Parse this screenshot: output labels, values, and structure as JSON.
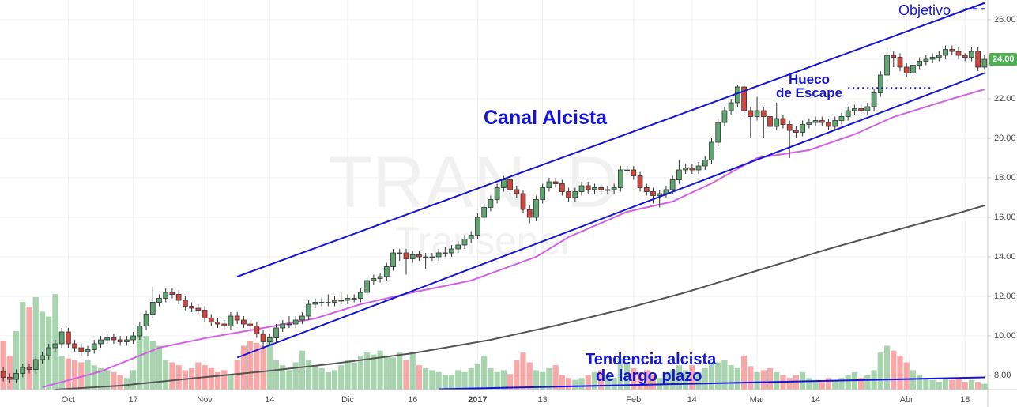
{
  "chart_data": {
    "type": "candlestick",
    "categories": [
      null,
      null,
      null,
      null,
      null,
      null,
      null,
      null,
      null,
      null,
      "Oct",
      null,
      null,
      null,
      null,
      null,
      null,
      null,
      null,
      null,
      "17",
      null,
      null,
      null,
      null,
      null,
      null,
      null,
      null,
      null,
      null,
      "Nov",
      null,
      null,
      null,
      null,
      null,
      null,
      null,
      null,
      null,
      "14",
      null,
      null,
      null,
      null,
      null,
      null,
      null,
      null,
      null,
      null,
      null,
      "Dic",
      null,
      null,
      null,
      null,
      null,
      null,
      null,
      null,
      null,
      "16",
      null,
      null,
      null,
      null,
      null,
      null,
      null,
      null,
      null,
      "2017",
      null,
      null,
      null,
      null,
      null,
      null,
      null,
      null,
      null,
      "13",
      null,
      null,
      null,
      null,
      null,
      null,
      null,
      null,
      null,
      null,
      null,
      null,
      null,
      "Feb",
      null,
      null,
      null,
      null,
      null,
      null,
      null,
      null,
      "14",
      null,
      null,
      null,
      null,
      null,
      null,
      null,
      null,
      null,
      "Mar",
      null,
      null,
      null,
      null,
      null,
      null,
      null,
      null,
      "14",
      null,
      null,
      null,
      null,
      null,
      null,
      null,
      null,
      null,
      null,
      null,
      null,
      null,
      "Abr",
      null,
      null,
      null,
      null,
      null,
      null,
      null,
      null,
      "18",
      null,
      null,
      null
    ],
    "candles": {
      "open": [
        8.2,
        7.9,
        7.8,
        8.1,
        8.4,
        8.3,
        8.8,
        9.0,
        9.4,
        9.6,
        10.2,
        9.6,
        9.4,
        9.2,
        9.3,
        9.6,
        9.8,
        9.9,
        9.8,
        9.7,
        9.8,
        10.0,
        10.5,
        11.1,
        11.7,
        11.9,
        12.2,
        12.1,
        11.8,
        11.5,
        11.4,
        11.3,
        10.9,
        10.7,
        10.6,
        10.5,
        11.0,
        10.8,
        10.6,
        10.5,
        10.1,
        9.7,
        9.9,
        10.4,
        10.6,
        10.6,
        10.8,
        11.0,
        11.6,
        11.7,
        11.7,
        11.7,
        11.8,
        11.8,
        11.9,
        11.9,
        12.2,
        12.8,
        12.9,
        13.0,
        13.5,
        14.2,
        14.2,
        13.9,
        14.1,
        14.0,
        14.0,
        14.0,
        14.2,
        14.2,
        14.4,
        14.6,
        14.9,
        15.1,
        16.0,
        16.5,
        16.9,
        17.5,
        17.9,
        17.4,
        17.2,
        16.4,
        16.0,
        16.9,
        17.5,
        17.8,
        17.7,
        17.3,
        17.0,
        17.3,
        17.6,
        17.4,
        17.5,
        17.4,
        17.4,
        17.5,
        18.4,
        18.4,
        18.1,
        17.5,
        17.3,
        17.1,
        17.2,
        17.4,
        17.9,
        18.4,
        18.5,
        18.4,
        18.6,
        18.9,
        19.8,
        20.8,
        21.4,
        21.8,
        22.6,
        21.4,
        21.1,
        21.4,
        21.1,
        20.6,
        21.0,
        20.7,
        20.4,
        20.3,
        20.7,
        20.8,
        20.9,
        20.8,
        20.6,
        20.9,
        21.1,
        21.4,
        21.5,
        21.4,
        21.6,
        22.3,
        23.2,
        24.2,
        24.1,
        23.6,
        23.3,
        23.7,
        23.9,
        24.0,
        24.1,
        24.2,
        24.5,
        24.4,
        24.2,
        24.1,
        24.4,
        23.6
      ],
      "high": [
        8.4,
        8.1,
        8.3,
        8.6,
        8.6,
        9.0,
        9.2,
        9.6,
        9.8,
        10.4,
        10.4,
        9.8,
        9.6,
        9.5,
        9.8,
        10.0,
        10.1,
        10.1,
        10.0,
        10.0,
        10.2,
        10.7,
        11.3,
        12.5,
        12.1,
        12.4,
        12.4,
        12.3,
        12.0,
        11.7,
        11.6,
        11.5,
        11.1,
        10.9,
        10.8,
        11.2,
        11.2,
        11.0,
        10.8,
        10.7,
        10.3,
        10.1,
        10.6,
        10.8,
        11.0,
        11.0,
        11.2,
        11.8,
        11.9,
        11.9,
        12.1,
        12.0,
        12.2,
        12.1,
        12.1,
        12.4,
        13.0,
        13.1,
        13.2,
        13.7,
        14.4,
        14.4,
        14.4,
        14.3,
        14.3,
        14.2,
        14.2,
        14.4,
        14.5,
        14.6,
        14.8,
        15.1,
        15.3,
        16.2,
        16.7,
        17.1,
        17.7,
        18.1,
        18.1,
        17.6,
        17.4,
        16.6,
        17.1,
        17.7,
        18.0,
        18.0,
        17.9,
        17.5,
        17.5,
        17.8,
        17.8,
        17.7,
        17.7,
        17.6,
        17.7,
        18.6,
        18.6,
        18.6,
        18.3,
        17.7,
        17.5,
        17.4,
        17.6,
        18.1,
        18.9,
        18.7,
        18.7,
        18.8,
        19.1,
        20.0,
        21.0,
        21.6,
        22.0,
        22.7,
        22.8,
        21.6,
        22.1,
        21.6,
        21.3,
        21.8,
        21.2,
        20.9,
        20.6,
        20.9,
        21.0,
        21.1,
        21.1,
        21.0,
        21.1,
        21.3,
        21.6,
        21.7,
        21.7,
        21.8,
        22.5,
        23.4,
        24.7,
        24.4,
        24.3,
        23.8,
        23.9,
        24.1,
        24.2,
        24.3,
        24.4,
        24.7,
        24.7,
        24.6,
        24.3,
        24.6,
        24.6,
        24.2
      ],
      "low": [
        7.7,
        7.6,
        7.6,
        7.9,
        8.1,
        8.1,
        8.6,
        8.8,
        9.2,
        9.4,
        9.4,
        9.2,
        9.0,
        9.0,
        9.1,
        9.4,
        9.6,
        9.6,
        9.5,
        9.5,
        9.6,
        9.8,
        10.3,
        10.9,
        11.5,
        11.7,
        11.9,
        11.6,
        11.3,
        11.2,
        11.1,
        10.7,
        10.5,
        10.4,
        10.3,
        10.3,
        10.6,
        10.4,
        10.3,
        9.9,
        9.4,
        9.5,
        9.7,
        10.2,
        10.4,
        10.4,
        10.6,
        10.8,
        11.4,
        11.5,
        11.5,
        11.5,
        11.6,
        11.6,
        11.7,
        11.7,
        12.0,
        12.6,
        12.7,
        12.8,
        13.3,
        13.8,
        13.1,
        13.7,
        13.8,
        13.4,
        13.8,
        13.8,
        14.0,
        14.0,
        14.2,
        14.4,
        14.7,
        14.9,
        15.8,
        16.3,
        16.7,
        17.3,
        17.2,
        17.0,
        16.2,
        15.7,
        15.8,
        16.7,
        17.3,
        17.5,
        17.1,
        16.8,
        16.8,
        17.1,
        17.2,
        17.2,
        17.2,
        17.2,
        17.2,
        17.3,
        18.1,
        17.9,
        17.3,
        17.1,
        16.7,
        16.5,
        17.0,
        17.2,
        17.7,
        18.2,
        18.2,
        18.2,
        18.4,
        18.7,
        19.6,
        20.6,
        21.2,
        21.6,
        21.2,
        20.0,
        20.9,
        20.0,
        20.4,
        20.4,
        20.5,
        19.0,
        20.0,
        20.1,
        20.5,
        20.6,
        20.6,
        20.4,
        20.4,
        20.7,
        20.9,
        21.2,
        21.2,
        21.2,
        21.4,
        22.1,
        23.0,
        23.6,
        23.4,
        23.1,
        23.1,
        23.5,
        23.7,
        23.8,
        23.9,
        24.0,
        24.2,
        24.0,
        23.9,
        23.9,
        23.4,
        23.5
      ],
      "close": [
        7.9,
        7.8,
        8.1,
        8.4,
        8.3,
        8.8,
        9.0,
        9.4,
        9.6,
        10.2,
        9.6,
        9.4,
        9.2,
        9.3,
        9.6,
        9.8,
        9.9,
        9.8,
        9.7,
        9.8,
        10.0,
        10.5,
        11.1,
        11.7,
        11.9,
        12.2,
        12.1,
        11.8,
        11.5,
        11.4,
        11.3,
        10.9,
        10.7,
        10.6,
        10.5,
        11.0,
        10.8,
        10.6,
        10.5,
        10.1,
        9.7,
        9.9,
        10.4,
        10.6,
        10.6,
        10.8,
        11.0,
        11.6,
        11.7,
        11.7,
        11.7,
        11.8,
        11.8,
        11.9,
        11.9,
        12.2,
        12.8,
        12.9,
        13.0,
        13.5,
        14.2,
        14.2,
        13.9,
        14.1,
        14.0,
        14.0,
        14.0,
        14.2,
        14.2,
        14.4,
        14.6,
        14.9,
        15.1,
        16.0,
        16.5,
        16.9,
        17.5,
        17.9,
        17.4,
        17.2,
        16.4,
        16.0,
        16.9,
        17.5,
        17.8,
        17.7,
        17.3,
        17.0,
        17.3,
        17.6,
        17.4,
        17.5,
        17.4,
        17.4,
        17.5,
        18.4,
        18.4,
        18.1,
        17.5,
        17.3,
        17.1,
        17.2,
        17.4,
        17.9,
        18.4,
        18.5,
        18.4,
        18.6,
        18.9,
        19.8,
        20.8,
        21.4,
        21.8,
        22.6,
        21.4,
        21.1,
        21.4,
        21.1,
        20.6,
        21.0,
        20.7,
        20.4,
        20.3,
        20.7,
        20.8,
        20.9,
        20.8,
        20.6,
        20.9,
        21.1,
        21.4,
        21.5,
        21.4,
        21.6,
        22.3,
        23.2,
        24.2,
        24.1,
        23.6,
        23.3,
        23.7,
        23.9,
        24.0,
        24.1,
        24.2,
        24.5,
        24.4,
        24.2,
        24.1,
        24.4,
        23.6,
        24.0
      ],
      "up_color": "#5ea56f",
      "down_color": "#d2453d"
    },
    "volume": {
      "values": [
        50,
        35,
        60,
        90,
        85,
        95,
        80,
        75,
        98,
        35,
        32,
        30,
        28,
        30,
        25,
        22,
        20,
        18,
        15,
        12,
        20,
        60,
        55,
        50,
        45,
        30,
        28,
        25,
        20,
        22,
        28,
        25,
        22,
        18,
        20,
        15,
        30,
        45,
        50,
        48,
        45,
        50,
        30,
        25,
        20,
        28,
        40,
        30,
        25,
        22,
        18,
        20,
        25,
        30,
        28,
        35,
        38,
        36,
        40,
        35,
        33,
        38,
        30,
        38,
        25,
        22,
        20,
        18,
        15,
        15,
        20,
        18,
        22,
        26,
        35,
        22,
        18,
        20,
        16,
        30,
        38,
        28,
        20,
        18,
        22,
        25,
        15,
        12,
        10,
        12,
        15,
        18,
        20,
        15,
        12,
        32,
        28,
        22,
        18,
        20,
        15,
        12,
        18,
        20,
        25,
        20,
        25,
        18,
        22,
        28,
        28,
        30,
        25,
        22,
        35,
        24,
        18,
        20,
        22,
        18,
        15,
        12,
        15,
        18,
        12,
        10,
        8,
        12,
        10,
        12,
        15,
        18,
        12,
        15,
        20,
        38,
        45,
        40,
        35,
        28,
        20,
        15,
        12,
        10,
        8,
        12,
        10,
        12,
        8,
        10,
        8,
        6
      ],
      "up_color": "rgba(96,176,110,0.55)",
      "down_color": "rgba(240,96,96,0.55)",
      "axis": "y2"
    },
    "ylim": [
      7.28,
      27
    ],
    "yticks": [
      {
        "value": 8,
        "label": "8.00"
      },
      {
        "value": 10,
        "label": "10.00"
      },
      {
        "value": 12,
        "label": "12.00"
      },
      {
        "value": 14,
        "label": "14.00"
      },
      {
        "value": 16,
        "label": "16.00"
      },
      {
        "value": 18,
        "label": "18.00"
      },
      {
        "value": 20,
        "label": "20.00"
      },
      {
        "value": 22,
        "label": "22.00"
      },
      {
        "value": 24,
        "label": "24.00"
      },
      {
        "value": 26,
        "label": "26.00"
      }
    ],
    "y2lim": [
      0,
      400
    ],
    "grid": true,
    "last_price": {
      "value": 24,
      "label": "24.00",
      "color": "#4caf50"
    },
    "moving_averages": [
      {
        "color": "#d163e2",
        "x": [
          6,
          15,
          24,
          31,
          40,
          48,
          55,
          63,
          72,
          82,
          87,
          96,
          103,
          109,
          116,
          124,
          131,
          137,
          146,
          151
        ],
        "values": [
          7.4,
          8.2,
          9.4,
          9.88,
          10.4,
          10.88,
          11.6,
          12.2,
          12.8,
          14.0,
          15.0,
          16.28,
          16.8,
          17.72,
          19.0,
          19.4,
          20.2,
          21.08,
          22.0,
          22.48
        ]
      },
      {
        "color": "#555555",
        "x": [
          8,
          18,
          30,
          40,
          51,
          63,
          75,
          85,
          96,
          105,
          115,
          127,
          137,
          146,
          151
        ],
        "values": [
          7.28,
          7.48,
          7.88,
          8.2,
          8.6,
          9.12,
          9.8,
          10.52,
          11.4,
          12.2,
          13.2,
          14.4,
          15.32,
          16.12,
          16.6
        ]
      }
    ],
    "lines": [
      {
        "x": [
          36,
          151
        ],
        "y": [
          13.0,
          26.85
        ],
        "color": "#1414d6",
        "style": "solid"
      },
      {
        "x": [
          36,
          151
        ],
        "y": [
          8.9,
          23.3
        ],
        "color": "#1414d6",
        "style": "solid"
      },
      {
        "x": [
          67,
          151
        ],
        "y": [
          7.3,
          7.9
        ],
        "color": "#1414d6",
        "style": "solid"
      },
      {
        "x": [
          130,
          143
        ],
        "y": [
          22.55,
          22.55
        ],
        "color": "#1414d6",
        "style": "dotted"
      },
      {
        "x": [
          148,
          151
        ],
        "y": [
          26.55,
          26.55
        ],
        "color": "#1414d6",
        "style": "dashed"
      }
    ],
    "annotations": [
      "Canal Alcista",
      "Hueco",
      "de Escape",
      "Tendencia alcista",
      "de largo plazo",
      "Objetivo"
    ],
    "watermark": [
      "TRAN, D",
      "Transener"
    ]
  }
}
